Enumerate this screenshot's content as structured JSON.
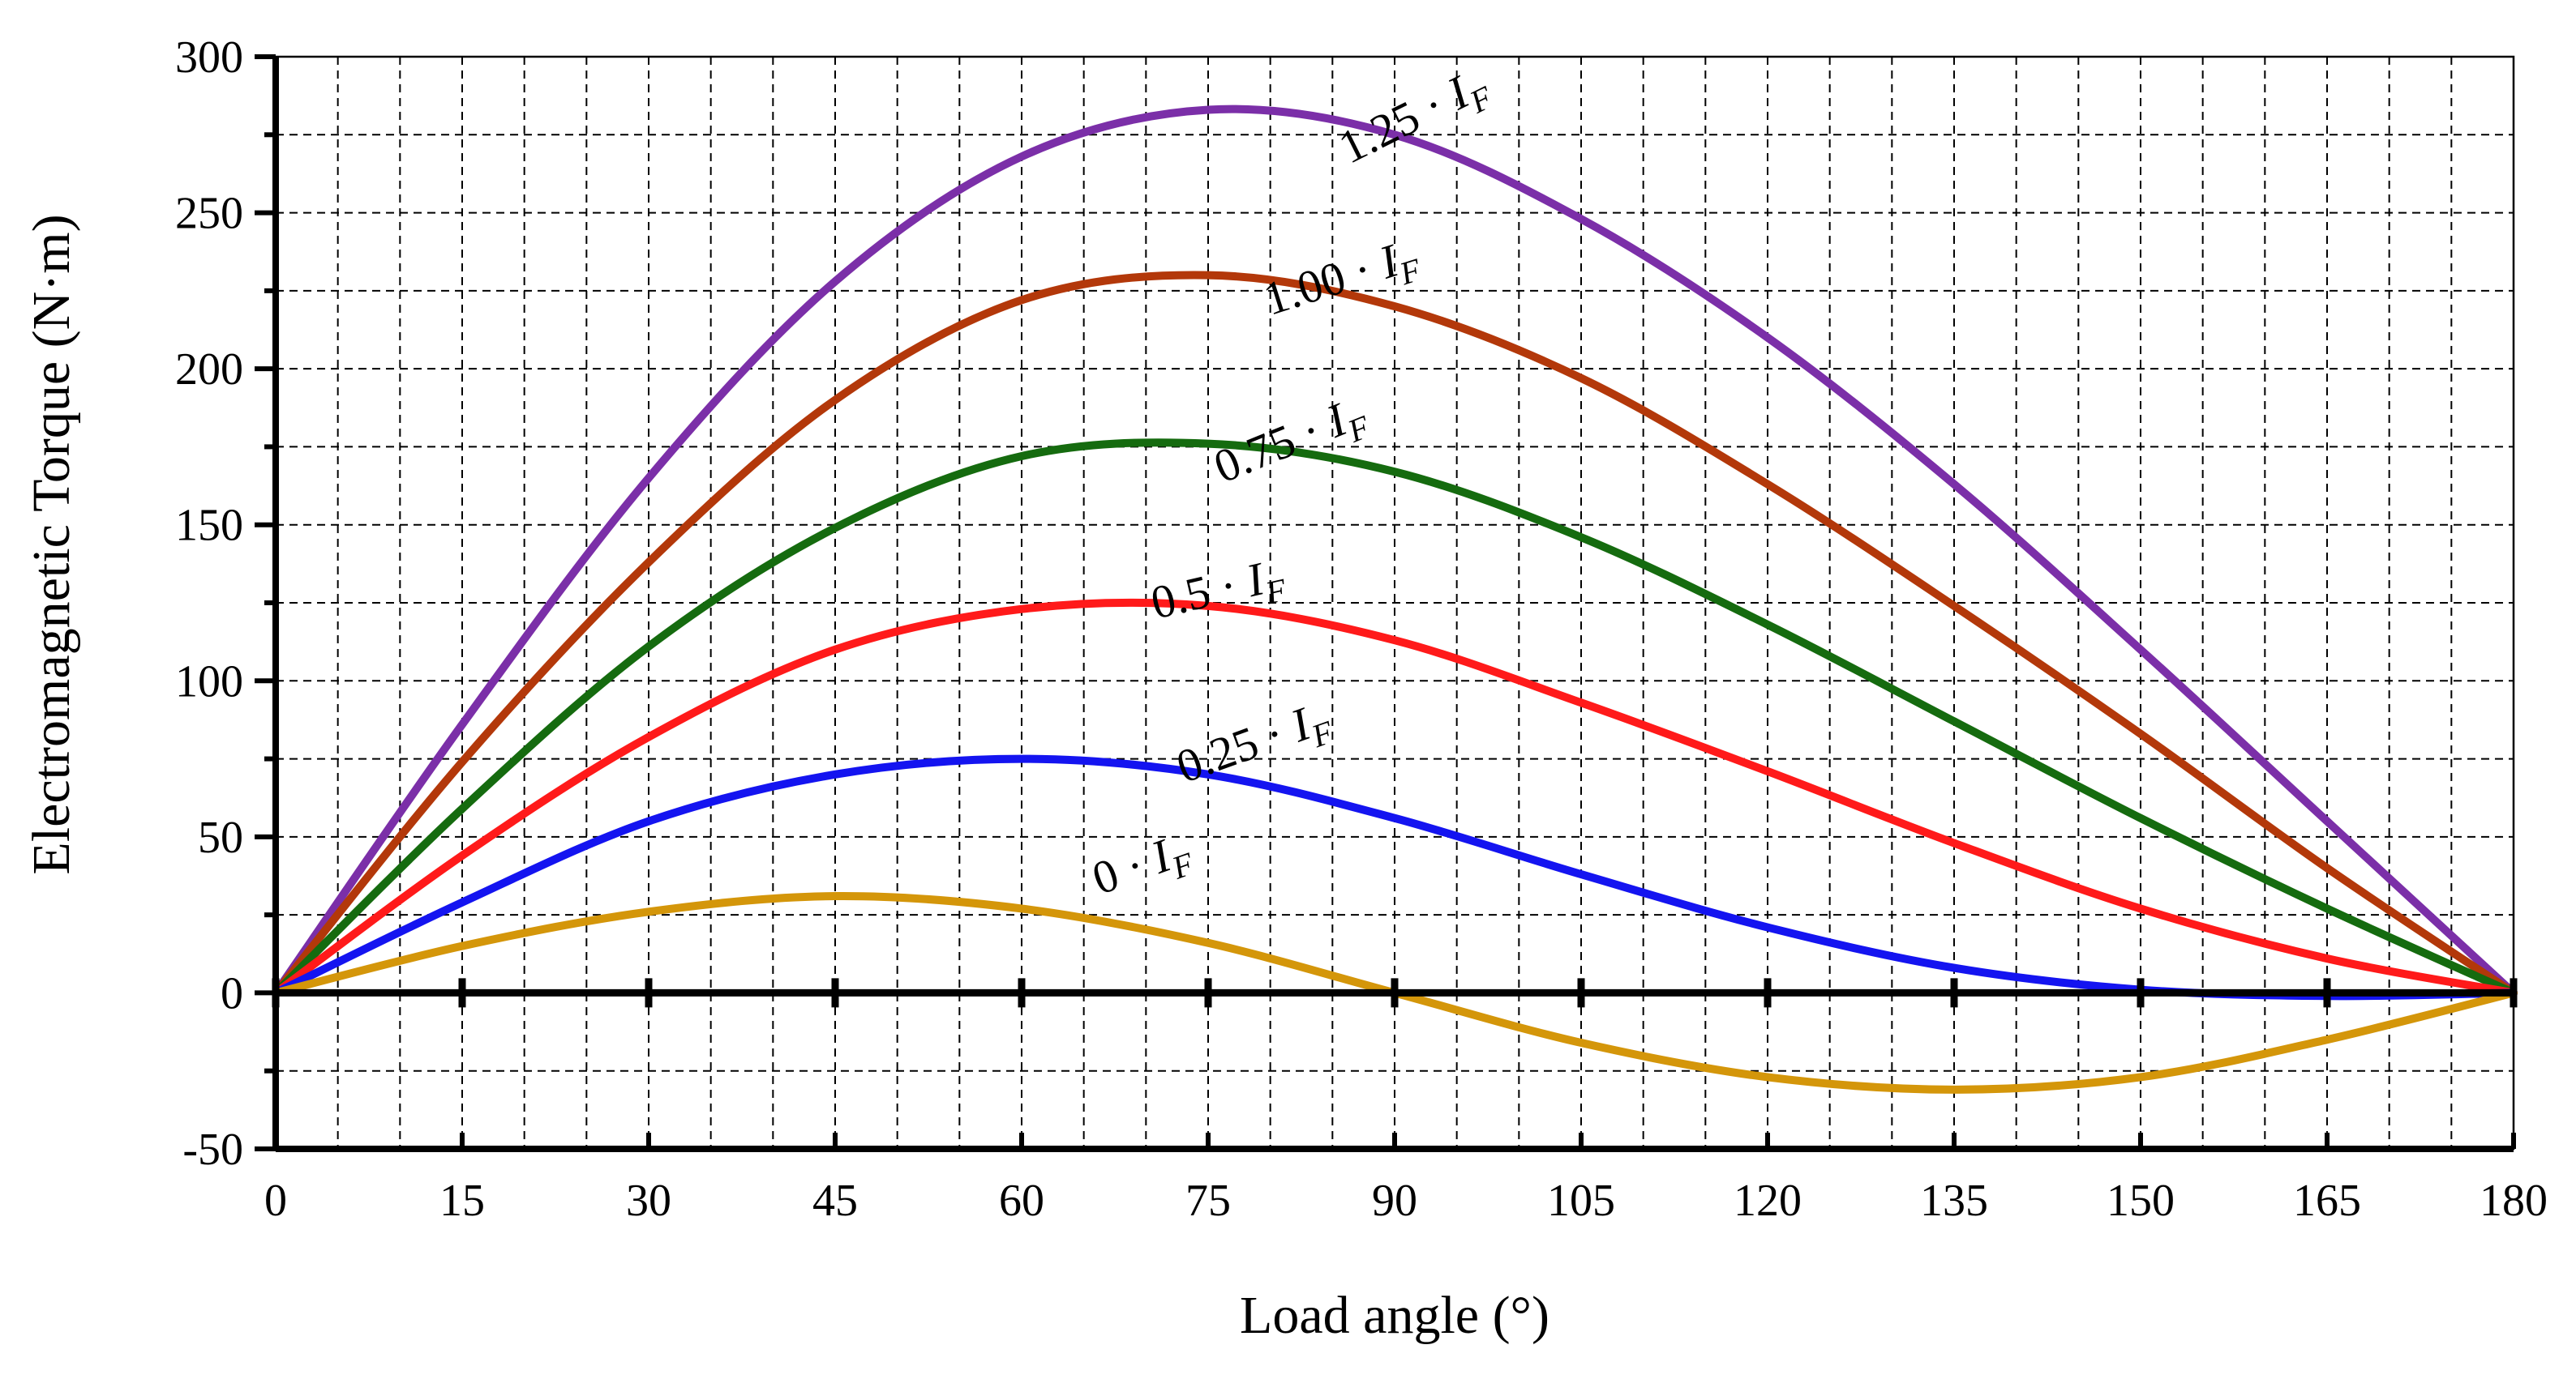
{
  "chart_data": {
    "type": "line",
    "title": "",
    "xlabel": "Load angle (°)",
    "ylabel": "Electromagnetic Torque (N·m)",
    "xlim": [
      0,
      180
    ],
    "ylim": [
      -50,
      300
    ],
    "x_ticks": [
      0,
      15,
      30,
      45,
      60,
      75,
      90,
      105,
      120,
      135,
      150,
      165,
      180
    ],
    "x_tick_labels": [
      "0",
      "15",
      "30",
      "45",
      "60",
      "75",
      "90",
      "105",
      "120",
      "135",
      "150",
      "165",
      "180"
    ],
    "y_ticks": [
      -50,
      0,
      50,
      100,
      150,
      200,
      250,
      300
    ],
    "y_tick_labels": [
      "-50",
      "0",
      "50",
      "100",
      "150",
      "200",
      "250",
      "300"
    ],
    "grid": true,
    "x": [
      0,
      15,
      30,
      45,
      60,
      75,
      90,
      105,
      120,
      135,
      150,
      165,
      180
    ],
    "series": [
      {
        "name": "1.25 · I_F",
        "label_main": "1.25 · ",
        "label_var": "I",
        "label_sub": "F",
        "color": "#7B2FA8",
        "values": [
          0,
          86,
          165,
          228,
          268,
          283,
          275,
          248,
          210,
          163,
          110,
          55,
          0
        ]
      },
      {
        "name": "1.00 · I_F",
        "label_main": "1.00 · ",
        "label_var": "I",
        "label_sub": "F",
        "color": "#B3380A",
        "values": [
          0,
          74,
          138,
          190,
          222,
          230,
          220,
          197,
          163,
          124,
          83,
          40,
          0
        ]
      },
      {
        "name": "0.75 · I_F",
        "label_main": "0.75 · ",
        "label_var": "I",
        "label_sub": "F",
        "color": "#156B0F",
        "values": [
          0,
          59,
          111,
          149,
          172,
          176,
          167,
          146,
          118,
          87,
          56,
          27,
          0
        ]
      },
      {
        "name": "0.5 · I_F",
        "label_main": "0.5 · ",
        "label_var": "I",
        "label_sub": "F",
        "color": "#FF1A1A",
        "values": [
          0,
          44,
          82,
          110,
          123,
          124,
          113,
          93,
          71,
          48,
          27,
          11,
          0
        ]
      },
      {
        "name": "0.25 · I_F",
        "label_main": "0.25 · ",
        "label_var": "I",
        "label_sub": "F",
        "color": "#1414F0",
        "values": [
          0,
          29,
          55,
          70,
          75,
          70,
          56,
          38,
          21,
          8,
          1,
          -1,
          0
        ]
      },
      {
        "name": "0 · I_F",
        "label_main": "0 · ",
        "label_var": "I",
        "label_sub": "F",
        "color": "#D4960A",
        "values": [
          0,
          15,
          26,
          31,
          27,
          16,
          0,
          -16,
          -27,
          -31,
          -27,
          -15,
          0
        ]
      }
    ],
    "annotations": [
      {
        "series": 0,
        "at_x": 92,
        "at_y": 272,
        "angle_data": -12
      },
      {
        "series": 1,
        "at_x": 86,
        "at_y": 220,
        "angle_data": -8
      },
      {
        "series": 2,
        "at_x": 82,
        "at_y": 168,
        "angle_data": -10
      },
      {
        "series": 3,
        "at_x": 76,
        "at_y": 120,
        "angle_data": -6
      },
      {
        "series": 4,
        "at_x": 79,
        "at_y": 71,
        "angle_data": -9
      },
      {
        "series": 5,
        "at_x": 70,
        "at_y": 32,
        "angle_data": -9
      }
    ]
  }
}
